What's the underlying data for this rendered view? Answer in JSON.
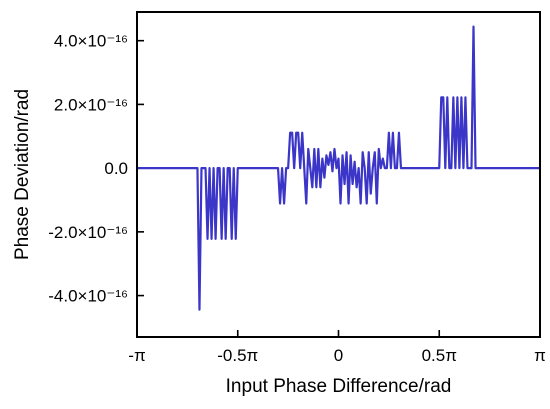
{
  "chart_data": {
    "type": "line",
    "xlabel": "Input Phase Difference/rad",
    "ylabel": "Phase Deviation/rad",
    "xlim": [
      -1,
      1
    ],
    "ylim": [
      -5.3e-16,
      4.9e-16
    ],
    "x_unit": "pi rad",
    "grid": false,
    "x_ticks": [
      {
        "value": -1,
        "label": "-π"
      },
      {
        "value": -0.5,
        "label": "-0.5π"
      },
      {
        "value": 0,
        "label": "0"
      },
      {
        "value": 0.5,
        "label": "0.5π"
      },
      {
        "value": 1,
        "label": "π"
      }
    ],
    "y_ticks": [
      {
        "value": 4e-16,
        "label": "4.0×10⁻¹⁶"
      },
      {
        "value": 2e-16,
        "label": "2.0×10⁻¹⁶"
      },
      {
        "value": 0,
        "label": "0.0"
      },
      {
        "value": -2e-16,
        "label": "-2.0×10⁻¹⁶"
      },
      {
        "value": -4e-16,
        "label": "-4.0×10⁻¹⁶"
      }
    ],
    "series": [
      {
        "color": "#3b35c8",
        "x": [
          -1.0,
          -0.7,
          -0.69,
          -0.68,
          -0.67,
          -0.66,
          -0.65,
          -0.64,
          -0.63,
          -0.62,
          -0.61,
          -0.6,
          -0.59,
          -0.58,
          -0.57,
          -0.56,
          -0.55,
          -0.54,
          -0.53,
          -0.52,
          -0.51,
          -0.5,
          -0.49,
          -0.48,
          -0.4,
          -0.3,
          -0.29,
          -0.28,
          -0.27,
          -0.26,
          -0.25,
          -0.24,
          -0.23,
          -0.22,
          -0.21,
          -0.2,
          -0.19,
          -0.18,
          -0.17,
          -0.16,
          -0.15,
          -0.14,
          -0.13,
          -0.12,
          -0.11,
          -0.1,
          -0.09,
          -0.08,
          -0.07,
          -0.06,
          -0.05,
          -0.04,
          -0.03,
          -0.02,
          -0.01,
          0.0,
          0.01,
          0.02,
          0.03,
          0.04,
          0.05,
          0.06,
          0.07,
          0.08,
          0.09,
          0.1,
          0.11,
          0.12,
          0.13,
          0.14,
          0.15,
          0.16,
          0.17,
          0.18,
          0.19,
          0.2,
          0.21,
          0.22,
          0.23,
          0.24,
          0.25,
          0.26,
          0.27,
          0.28,
          0.29,
          0.3,
          0.31,
          0.32,
          0.4,
          0.49,
          0.5,
          0.51,
          0.52,
          0.53,
          0.54,
          0.55,
          0.56,
          0.57,
          0.58,
          0.59,
          0.6,
          0.61,
          0.62,
          0.63,
          0.64,
          0.65,
          0.66,
          0.67,
          0.68,
          0.69,
          0.7,
          0.71,
          0.8,
          1.0
        ],
        "y": [
          0,
          0,
          -4.44e-16,
          0,
          0,
          0,
          -2.22e-16,
          0,
          -2.22e-16,
          0,
          -2.22e-16,
          0,
          0,
          -2.22e-16,
          0,
          -2.22e-16,
          0,
          0,
          -2.22e-16,
          0,
          -2.22e-16,
          0,
          0,
          0,
          0,
          0,
          -1.11e-16,
          0,
          -1.11e-16,
          0,
          0,
          1.11e-16,
          1.11e-16,
          0,
          1.11e-16,
          1.11e-16,
          0,
          1.11e-16,
          0,
          -1.11e-16,
          6e-17,
          0,
          -6e-17,
          6e-17,
          -6e-17,
          6e-17,
          -6e-17,
          3e-17,
          -3e-17,
          4e-17,
          1e-17,
          5e-17,
          -1e-17,
          6e-17,
          0,
          3e-17,
          -1.11e-16,
          4e-17,
          -5e-17,
          5e-17,
          -1.11e-16,
          4e-17,
          -5e-17,
          2e-17,
          -6e-17,
          0,
          -1.11e-16,
          5e-17,
          0,
          -1.11e-16,
          5e-17,
          -8e-17,
          0,
          5e-17,
          -1.11e-16,
          6e-17,
          0,
          3e-17,
          0,
          0,
          1.11e-16,
          0,
          1.11e-16,
          0,
          0,
          1.11e-16,
          0,
          0,
          0,
          0,
          0,
          2.22e-16,
          2.22e-16,
          0,
          2.22e-16,
          0,
          0,
          2.22e-16,
          0,
          2.22e-16,
          0,
          2.22e-16,
          0,
          2.22e-16,
          0,
          0,
          0,
          4.44e-16,
          0,
          0,
          0,
          0,
          0,
          0
        ]
      }
    ]
  }
}
